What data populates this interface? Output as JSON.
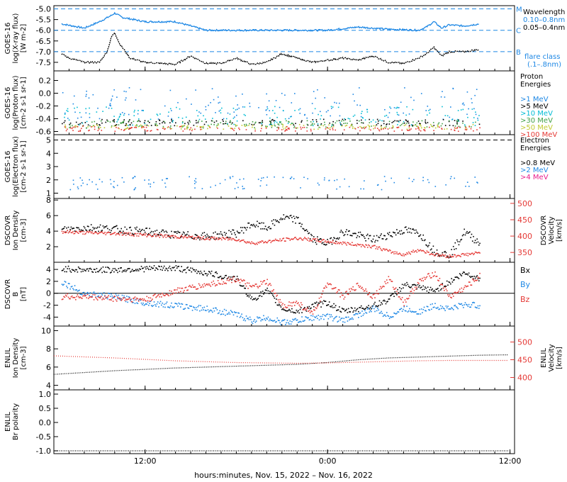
{
  "chart_data": [
    {
      "type": "line",
      "panel": "goes-xray",
      "ylabel": [
        "GOES-16",
        "log(X-ray flux)",
        "[W m-2]"
      ],
      "ytick_labels": [
        "-5.0",
        "-5.5",
        "-6.0",
        "-6.5",
        "-7.0",
        "-7.5"
      ],
      "yticks": [
        -5.0,
        -5.5,
        -6.0,
        -6.5,
        -7.0,
        -7.5
      ],
      "ylim": [
        -7.9,
        -4.85
      ],
      "flare_class_lines": [
        {
          "y": -5.0,
          "label": "M"
        },
        {
          "y": -6.0,
          "label": "C"
        },
        {
          "y": -7.0,
          "label": "B"
        }
      ],
      "legend_title": "Wavelength",
      "series": [
        {
          "name": "0.10–0.8nm",
          "color": "#1e88e5",
          "x": [
            6.5,
            8,
            9,
            9.8,
            10,
            10.5,
            12,
            14,
            16,
            18,
            20,
            22,
            24,
            26,
            28,
            30,
            30.5,
            31,
            31.5,
            32,
            33,
            34
          ],
          "y": [
            -5.7,
            -5.9,
            -5.6,
            -5.3,
            -5.2,
            -5.4,
            -5.6,
            -5.6,
            -6.0,
            -6.0,
            -6.0,
            -6.0,
            -6.0,
            -5.85,
            -5.95,
            -6.0,
            -5.85,
            -5.6,
            -5.9,
            -5.75,
            -5.8,
            -5.7
          ]
        },
        {
          "name": "0.05–0.4nm",
          "color": "#000000",
          "x": [
            6.5,
            7,
            8,
            9,
            9.5,
            9.8,
            10,
            10.3,
            11,
            12,
            14,
            15,
            16,
            17,
            18,
            19,
            20,
            21,
            22,
            23,
            24,
            25,
            26,
            27,
            28,
            29,
            30,
            30.5,
            31,
            31.5,
            32,
            33,
            34
          ],
          "y": [
            -7.1,
            -7.3,
            -7.5,
            -7.5,
            -7.0,
            -6.3,
            -6.1,
            -6.6,
            -7.3,
            -7.5,
            -7.6,
            -7.2,
            -7.55,
            -7.55,
            -7.3,
            -7.6,
            -7.5,
            -7.1,
            -7.3,
            -7.5,
            -7.4,
            -7.3,
            -7.4,
            -7.2,
            -7.5,
            -7.55,
            -7.3,
            -7.1,
            -6.8,
            -7.2,
            -7.0,
            -7.0,
            -6.9
          ]
        }
      ],
      "legend_extra": [
        "flare class",
        "(.1–.8nm)"
      ]
    },
    {
      "type": "scatter",
      "panel": "goes-proton",
      "ylabel": [
        "GOES-16",
        "log(Proton flux)",
        "[cm-2 s-1 sr-1]"
      ],
      "ytick_labels": [
        "0.2",
        "0.0",
        "-0.2",
        "-0.4",
        "-0.6"
      ],
      "yticks": [
        0.2,
        0.0,
        -0.2,
        -0.4,
        -0.6
      ],
      "ylim": [
        -0.65,
        0.35
      ],
      "legend_title": [
        "Proton",
        "Energies"
      ],
      "series": [
        {
          "name": ">1 MeV",
          "color": "#1e88e5",
          "y_mid": -0.15,
          "spread": 0.25
        },
        {
          "name": ">5 MeV",
          "color": "#000000",
          "y_mid": -0.45,
          "spread": 0.05
        },
        {
          "name": ">10 MeV",
          "color": "#00bcd4",
          "y_mid": -0.35,
          "spread": 0.15
        },
        {
          "name": ">30 MeV",
          "color": "#43a047",
          "y_mid": -0.48,
          "spread": 0.06
        },
        {
          "name": ">50 MeV",
          "color": "#c0ca33",
          "y_mid": -0.52,
          "spread": 0.04
        },
        {
          "name": ">100 MeV",
          "color": "#e53935",
          "y_mid": -0.55,
          "spread": 0.04
        }
      ]
    },
    {
      "type": "scatter",
      "panel": "goes-electron",
      "ylabel": [
        "GOES-16",
        "log(Electron flux)",
        "[cm-2 s-1 sr-1]"
      ],
      "ytick_labels": [
        "5",
        "4",
        "3",
        "2",
        "1"
      ],
      "yticks": [
        5,
        4,
        3,
        2,
        1
      ],
      "ylim": [
        0.6,
        5.4
      ],
      "ref_line": 5,
      "legend_title": [
        "Electron",
        "Energies"
      ],
      "series": [
        {
          "name": ">0.8 MeV",
          "color": "#000000",
          "y_mid": 5.0,
          "spread": 0
        },
        {
          "name": ">2 MeV",
          "color": "#1e88e5",
          "y_mid": 1.8,
          "spread": 0.5
        },
        {
          "name": ">4 MeV",
          "color": "#e91e8c",
          "y_mid": 0.7,
          "spread": 0
        }
      ]
    },
    {
      "type": "scatter",
      "panel": "dscovr-density",
      "ylabel": [
        "DSCOVR",
        "Ion Density",
        "[cm-3]"
      ],
      "ytick_labels": [
        "8",
        "6",
        "4",
        "2"
      ],
      "yticks": [
        8,
        6,
        4,
        2
      ],
      "ylim": [
        0,
        8.2
      ],
      "ylabel_right": [
        "DSCOVR",
        "Velocity",
        "[km/s]"
      ],
      "ytick_labels_right": [
        "500",
        "450",
        "400",
        "350"
      ],
      "yticks_right": [
        500,
        450,
        400,
        350
      ],
      "ylim_right": [
        320,
        515
      ],
      "series": [
        {
          "name": "Ion Density",
          "color": "#000000",
          "x": [
            6.5,
            8,
            9,
            10,
            12,
            14,
            16,
            18,
            19,
            20,
            21,
            22,
            23,
            24,
            25,
            26,
            27,
            28,
            29,
            30,
            31,
            32,
            33,
            34
          ],
          "y": [
            4.2,
            4.5,
            4.5,
            4.3,
            4.0,
            3.6,
            3.4,
            3.8,
            5.0,
            4.5,
            5.8,
            5.5,
            3.0,
            2.5,
            4.0,
            3.5,
            3.0,
            3.6,
            4.2,
            3.8,
            1.5,
            1.0,
            4.0,
            2.5
          ]
        },
        {
          "name": "Velocity",
          "color": "#e53935",
          "axis": "right",
          "x": [
            6.5,
            8,
            10,
            12,
            14,
            16,
            18,
            19,
            20,
            21,
            22,
            23,
            24,
            25,
            26,
            27,
            28,
            29,
            30,
            31,
            32,
            33,
            34
          ],
          "y": [
            415,
            412,
            410,
            405,
            400,
            395,
            392,
            380,
            385,
            390,
            395,
            390,
            385,
            380,
            375,
            370,
            355,
            345,
            360,
            345,
            340,
            345,
            350
          ]
        }
      ]
    },
    {
      "type": "scatter",
      "panel": "dscovr-b",
      "ylabel": [
        "DSCOVR",
        "B",
        "[nT]"
      ],
      "ytick_labels": [
        "4",
        "2",
        "0",
        "-2",
        "-4"
      ],
      "yticks": [
        4,
        2,
        0,
        -2,
        -4
      ],
      "ylim": [
        -5.5,
        5.2
      ],
      "series": [
        {
          "name": "Bx",
          "color": "#000000",
          "x": [
            6.5,
            8,
            10,
            12,
            14,
            16,
            18,
            19,
            20,
            21,
            22,
            23,
            24,
            25,
            26,
            27,
            28,
            29,
            30,
            31,
            32,
            33,
            34
          ],
          "y": [
            4.2,
            4.0,
            4.0,
            4.2,
            4.3,
            3.5,
            2.5,
            -1.0,
            0.5,
            -2.5,
            -3.0,
            -2.0,
            -1.5,
            -3.0,
            -2.5,
            -2.0,
            -1.0,
            1.5,
            1.0,
            0.5,
            2.0,
            3.5,
            2.5
          ]
        },
        {
          "name": "By",
          "color": "#1e88e5",
          "x": [
            6.5,
            8,
            10,
            12,
            14,
            16,
            18,
            19,
            20,
            21,
            22,
            23,
            24,
            25,
            26,
            27,
            28,
            29,
            30,
            31,
            32,
            33,
            34
          ],
          "y": [
            2.0,
            0.0,
            -0.5,
            -1.5,
            -2.0,
            -2.5,
            -3.5,
            -4.5,
            -4.0,
            -4.8,
            -4.5,
            -4.0,
            -3.8,
            -4.5,
            -3.5,
            -2.5,
            -3.8,
            -2.5,
            -3.0,
            -2.0,
            -2.5,
            -1.8,
            -2.0
          ]
        },
        {
          "name": "Bz",
          "color": "#e53935",
          "x": [
            6.5,
            8,
            10,
            12,
            14,
            16,
            18,
            19,
            20,
            21,
            22,
            23,
            24,
            25,
            26,
            27,
            28,
            29,
            30,
            31,
            32,
            33,
            34
          ],
          "y": [
            -0.5,
            -0.5,
            -0.8,
            -1.0,
            0.5,
            1.5,
            2.5,
            1.0,
            2.0,
            -2.0,
            -1.5,
            -3.5,
            2.0,
            -0.5,
            1.5,
            -0.5,
            2.5,
            -1.5,
            2.0,
            3.5,
            -0.5,
            1.0,
            3.0
          ]
        }
      ]
    },
    {
      "type": "line",
      "panel": "enlil-density",
      "ylabel": [
        "ENLIL",
        "Ion Density",
        "[cm-3]"
      ],
      "ytick_labels": [
        "10",
        "8",
        "6",
        "4"
      ],
      "yticks": [
        10,
        8,
        6,
        4
      ],
      "ylim": [
        3.5,
        10.5
      ],
      "ylabel_right": [
        "ENLIL",
        "Velocity",
        "[km/s]"
      ],
      "ytick_labels_right": [
        "500",
        "450",
        "400"
      ],
      "yticks_right": [
        500,
        450,
        400
      ],
      "ylim_right": [
        365,
        545
      ],
      "series": [
        {
          "name": "Ion Density",
          "color": "#000000",
          "x": [
            6,
            10,
            14,
            18,
            22,
            24,
            26,
            28,
            30,
            32,
            34,
            36
          ],
          "y": [
            5.2,
            5.6,
            5.9,
            6.1,
            6.3,
            6.5,
            6.8,
            7.0,
            7.1,
            7.2,
            7.3,
            7.35
          ]
        },
        {
          "name": "Velocity",
          "color": "#e53935",
          "axis": "right",
          "x": [
            6,
            10,
            14,
            18,
            22,
            24,
            26,
            28,
            30,
            32,
            34,
            36
          ],
          "y": [
            461,
            455,
            447,
            442,
            440,
            441,
            443,
            445,
            447,
            448,
            448,
            448
          ]
        }
      ]
    },
    {
      "type": "line",
      "panel": "enlil-polarity",
      "ylabel": [
        "ENLIL",
        "Br polarity"
      ],
      "ytick_labels": [
        "1.0",
        "0.5",
        "0.0",
        "-0.5",
        "-1.0"
      ],
      "yticks": [
        1.0,
        0.5,
        0.0,
        -0.5,
        -1.0
      ],
      "ylim": [
        -1.1,
        1.15
      ],
      "series": [
        {
          "name": "Br polarity",
          "color": "#000000",
          "x": [
            6,
            36
          ],
          "y": [
            -1.0,
            -1.0
          ]
        }
      ]
    }
  ],
  "x_axis": {
    "range_hours": [
      6,
      36.3
    ],
    "tick_labels": [
      "12:00",
      "0:00",
      "12:00"
    ],
    "tick_hours": [
      12,
      24,
      36
    ],
    "xlabel": "hours:minutes, Nov. 15, 2022 – Nov. 16, 2022"
  },
  "side_labels": {
    "class_m": "M",
    "class_c": "C",
    "class_b": "B",
    "bx": "Bx",
    "by": "By",
    "bz": "Bz",
    "bx_color": "#000000",
    "by_color": "#1e88e5",
    "bz_color": "#e53935"
  }
}
